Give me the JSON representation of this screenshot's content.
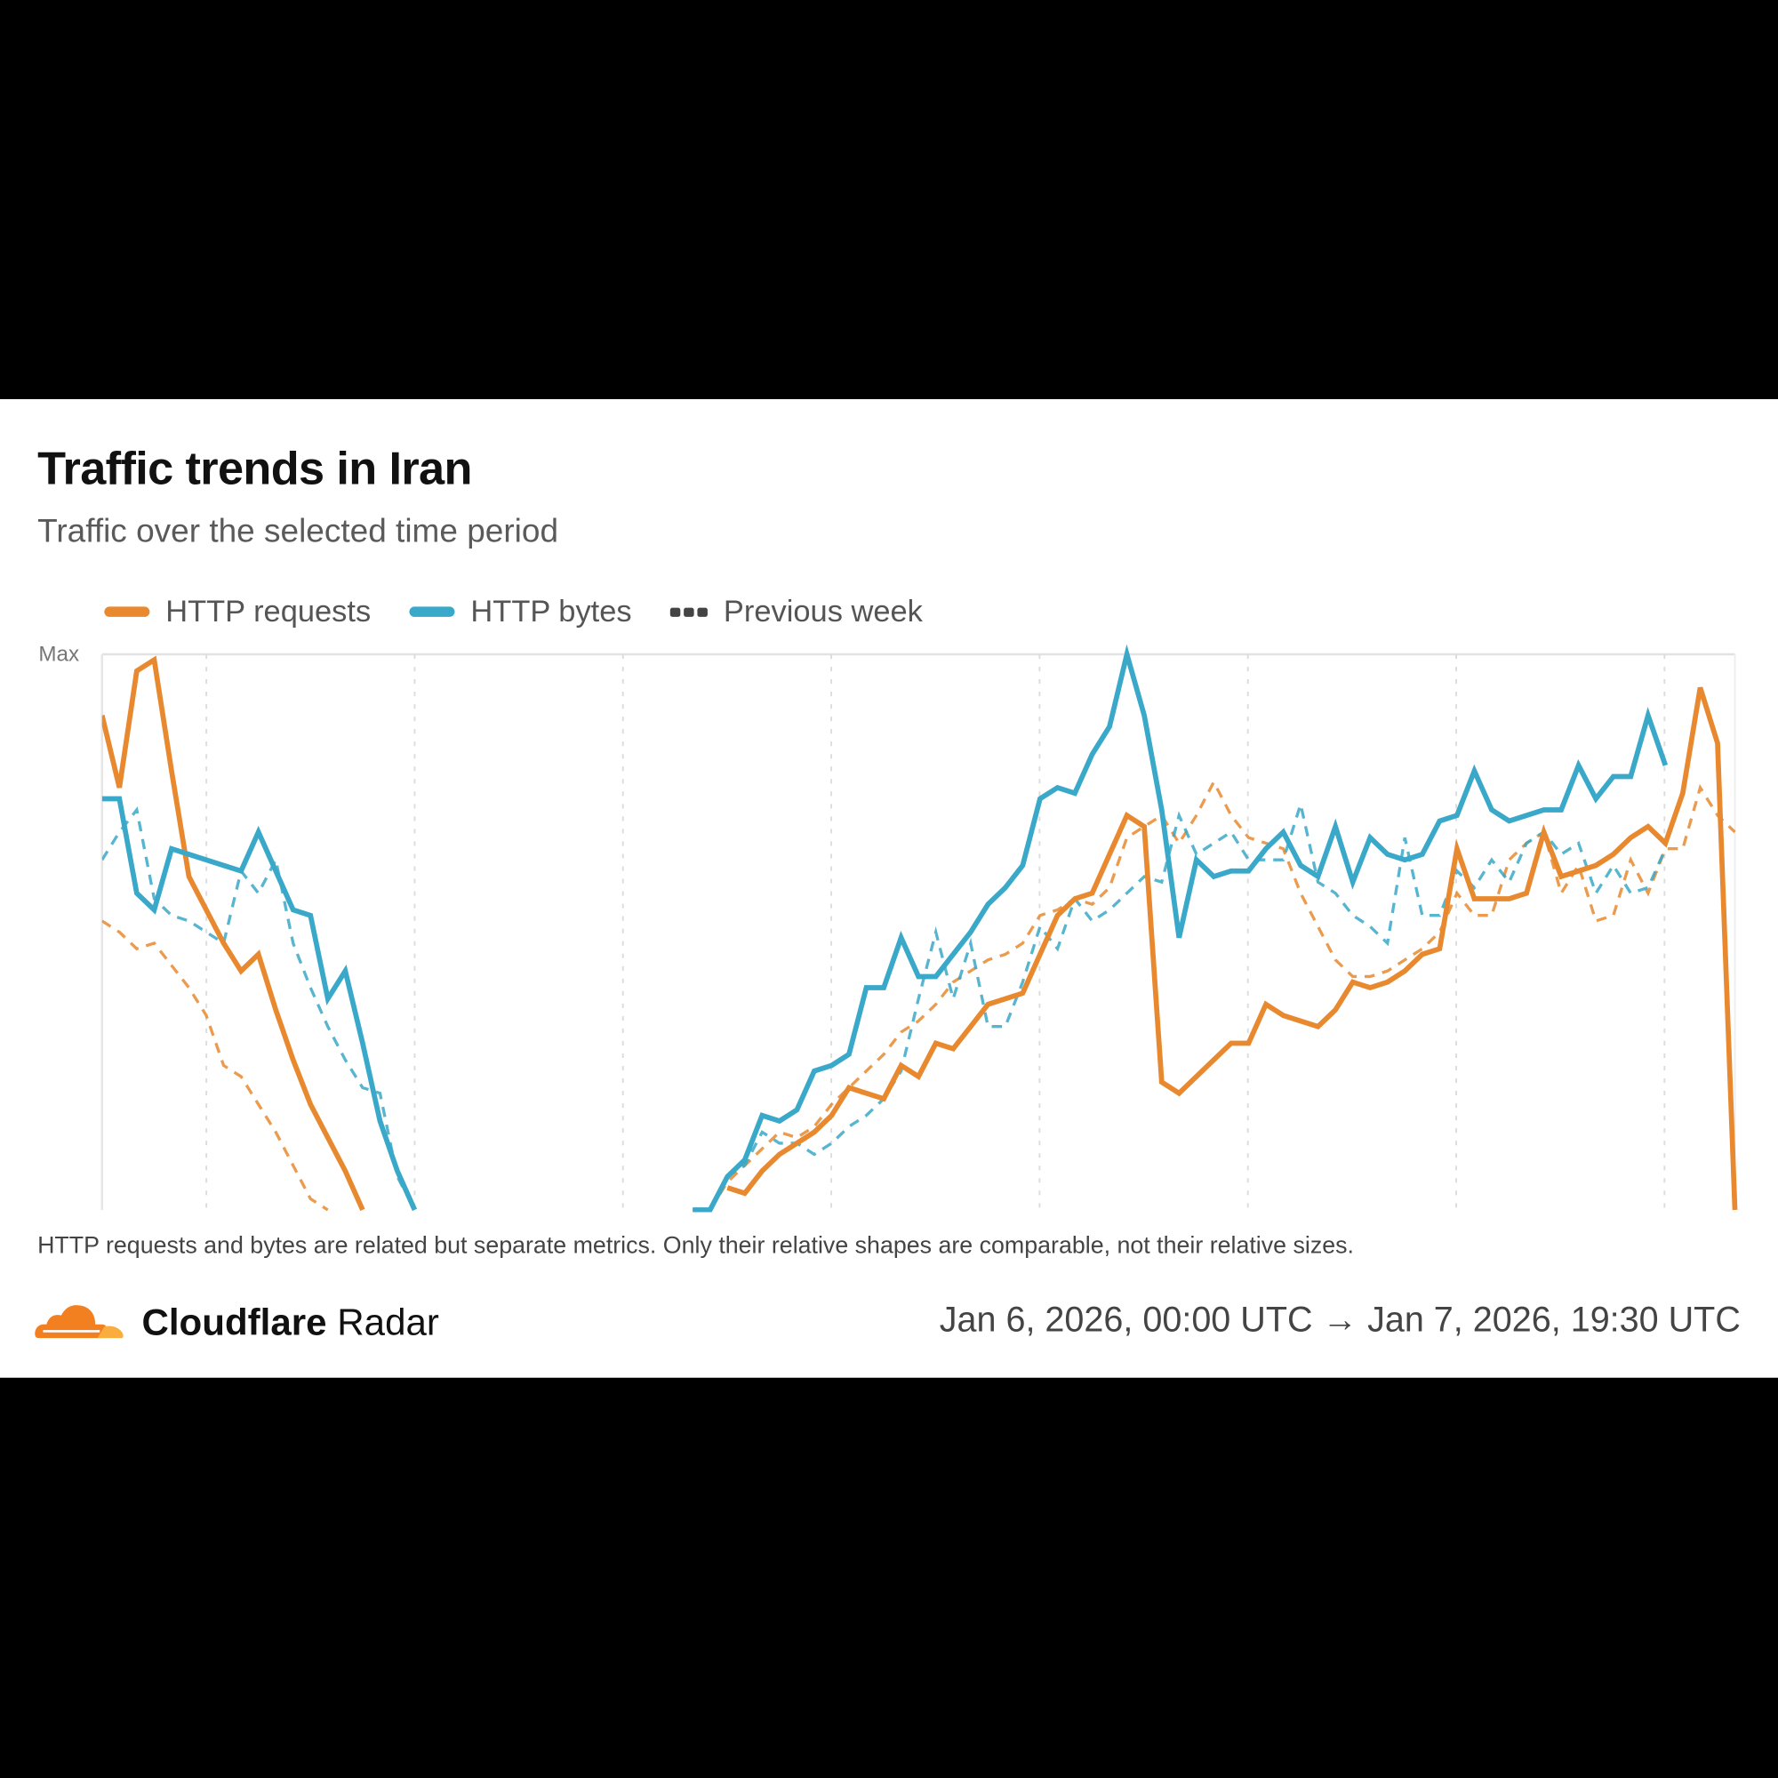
{
  "header": {
    "title": "Traffic trends in Iran",
    "subtitle": "Traffic over the selected time period"
  },
  "legend": {
    "items": [
      {
        "label": "HTTP requests",
        "color": "#e8892f",
        "style": "solid"
      },
      {
        "label": "HTTP bytes",
        "color": "#3aa8c8",
        "style": "solid"
      },
      {
        "label": "Previous week",
        "color": "#444444",
        "style": "dashed"
      }
    ]
  },
  "chart_data": {
    "type": "line",
    "ylabel_top": "Max",
    "y_unit": "fraction of Max",
    "ylim": [
      0,
      1
    ],
    "x_range": [
      "Jan 6, 2026, 00:00 UTC",
      "Jan 7, 2026, 19:30 UTC"
    ],
    "grid": "vertical dotted",
    "legend_position": "top-left",
    "series": [
      {
        "name": "HTTP requests",
        "color": "#e8892f",
        "values": [
          0.89,
          0.76,
          0.97,
          0.99,
          0.79,
          0.6,
          0.54,
          0.48,
          0.43,
          0.46,
          0.36,
          0.27,
          0.19,
          0.13,
          0.07,
          0,
          null,
          null,
          null,
          null,
          null,
          null,
          null,
          null,
          null,
          null,
          null,
          null,
          null,
          null,
          null,
          null,
          null,
          null,
          null,
          null,
          0.04,
          0.03,
          0.07,
          0.1,
          0.12,
          0.14,
          0.17,
          0.22,
          0.21,
          0.2,
          0.26,
          0.24,
          0.3,
          0.29,
          0.33,
          0.37,
          0.38,
          0.39,
          0.46,
          0.53,
          0.56,
          0.57,
          0.64,
          0.71,
          0.69,
          0.23,
          0.21,
          0.24,
          0.27,
          0.3,
          0.3,
          0.37,
          0.35,
          0.34,
          0.33,
          0.36,
          0.41,
          0.4,
          0.41,
          0.43,
          0.46,
          0.47,
          0.65,
          0.56,
          0.56,
          0.56,
          0.57,
          0.68,
          0.6,
          0.61,
          0.62,
          0.64,
          0.67,
          0.69,
          0.66,
          0.75,
          0.94,
          0.84,
          0
        ],
        "previous_week": [
          0.52,
          0.5,
          0.47,
          0.48,
          0.44,
          0.4,
          0.35,
          0.26,
          0.24,
          0.19,
          0.14,
          0.08,
          0.02,
          0,
          null,
          null,
          null,
          null,
          null,
          null,
          null,
          null,
          null,
          null,
          null,
          null,
          null,
          null,
          null,
          null,
          null,
          null,
          null,
          null,
          null,
          0,
          0.05,
          0.08,
          0.11,
          0.14,
          0.13,
          0.15,
          0.19,
          0.22,
          0.25,
          0.28,
          0.32,
          0.34,
          0.37,
          0.41,
          0.43,
          0.45,
          0.46,
          0.48,
          0.53,
          0.54,
          0.56,
          0.55,
          0.58,
          0.67,
          0.69,
          0.71,
          0.66,
          0.71,
          0.77,
          0.71,
          0.67,
          0.66,
          0.65,
          0.57,
          0.51,
          0.45,
          0.42,
          0.42,
          0.43,
          0.45,
          0.47,
          0.5,
          0.57,
          0.53,
          0.53,
          0.63,
          0.66,
          0.68,
          0.57,
          0.62,
          0.52,
          0.53,
          0.63,
          0.57,
          0.65,
          0.65,
          0.76,
          0.71,
          0.68
        ]
      },
      {
        "name": "HTTP bytes",
        "color": "#3aa8c8",
        "values": [
          0.74,
          0.74,
          0.57,
          0.54,
          0.65,
          0.64,
          0.63,
          0.62,
          0.61,
          0.68,
          0.61,
          0.54,
          0.53,
          0.38,
          0.43,
          0.3,
          0.16,
          0.07,
          0,
          null,
          null,
          null,
          null,
          null,
          null,
          null,
          null,
          null,
          null,
          null,
          null,
          null,
          null,
          null,
          0,
          0,
          0.06,
          0.09,
          0.17,
          0.16,
          0.18,
          0.25,
          0.26,
          0.28,
          0.4,
          0.4,
          0.49,
          0.42,
          0.42,
          0.46,
          0.5,
          0.55,
          0.58,
          0.62,
          0.74,
          0.76,
          0.75,
          0.82,
          0.87,
          1.0,
          0.89,
          0.72,
          0.49,
          0.63,
          0.6,
          0.61,
          0.61,
          0.65,
          0.68,
          0.62,
          0.6,
          0.69,
          0.59,
          0.67,
          0.64,
          0.63,
          0.64,
          0.7,
          0.71,
          0.79,
          0.72,
          0.7,
          0.71,
          0.72,
          0.72,
          0.8,
          0.74,
          0.78,
          0.78,
          0.89,
          0.8,
          null,
          null,
          null,
          null
        ],
        "previous_week": [
          0.63,
          0.68,
          0.72,
          0.56,
          0.53,
          0.52,
          0.5,
          0.48,
          0.61,
          0.57,
          0.63,
          0.48,
          0.4,
          0.33,
          0.27,
          0.22,
          0.21,
          0.06,
          0,
          null,
          null,
          null,
          null,
          null,
          null,
          null,
          null,
          null,
          null,
          null,
          null,
          null,
          null,
          null,
          0,
          0,
          0.06,
          0.08,
          0.14,
          0.12,
          0.12,
          0.1,
          0.12,
          0.15,
          0.17,
          0.2,
          0.25,
          0.38,
          0.5,
          0.38,
          0.48,
          0.33,
          0.33,
          0.41,
          0.51,
          0.47,
          0.56,
          0.52,
          0.54,
          0.57,
          0.6,
          0.59,
          0.71,
          0.64,
          0.66,
          0.68,
          0.63,
          0.63,
          0.63,
          0.73,
          0.59,
          0.57,
          0.53,
          0.51,
          0.48,
          0.67,
          0.53,
          0.53,
          0.61,
          0.58,
          0.63,
          0.59,
          0.66,
          0.68,
          0.64,
          0.66,
          0.57,
          0.62,
          0.57,
          0.58,
          0.65,
          null,
          null,
          null,
          null
        ]
      }
    ]
  },
  "note": "HTTP requests and bytes are related but separate metrics. Only their relative shapes are comparable, not their relative sizes.",
  "footer": {
    "brand_bold": "Cloudflare",
    "brand_light": "Radar",
    "logo_color": "#f38020",
    "date_range": "Jan 6, 2026, 00:00 UTC → Jan 7, 2026, 19:30 UTC"
  }
}
